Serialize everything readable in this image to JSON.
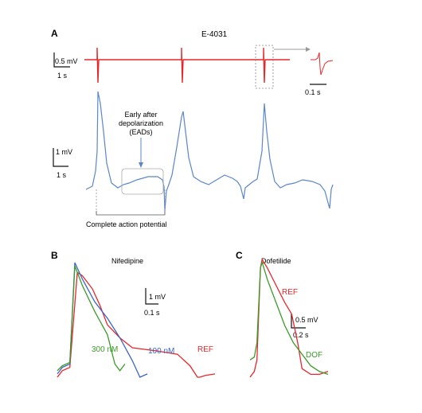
{
  "panel_a": {
    "label": "A",
    "title": "E-4031",
    "top_scale": {
      "amplitude": "0.5 mV",
      "time": "1 s"
    },
    "inset_scale": "0.1 s",
    "main_scale": {
      "amplitude": "1 mV",
      "time": "1 s"
    },
    "ead_annotation": [
      "Early after",
      "depolarization",
      "(EADs)"
    ],
    "cap_label": "Complete action potential"
  },
  "panel_b": {
    "label": "B",
    "title": "Nifedipine",
    "scale": {
      "amplitude": "1 mV",
      "time": "0.1 s"
    }
  },
  "panel_c": {
    "label": "C",
    "title": "Dofetilide",
    "scale": {
      "amplitude": "0.5 mV",
      "time": "0.2 s"
    }
  },
  "colors": {
    "ref": "#e8262a",
    "blue": "#3a66c4",
    "green": "#3a9a28",
    "ap_blue": "#5b86c8",
    "axis": "#111111",
    "guide": "#999999"
  },
  "chart_data": [
    {
      "type": "line",
      "title": "E-4031",
      "series": [
        {
          "color": "#e8262a",
          "x": [
            0,
            0.05,
            1.8,
            1.85,
            2.0,
            4.0,
            4.05,
            4.2,
            6.0,
            6.05,
            6.2,
            8.0
          ],
          "y": [
            0,
            0.0,
            0.0,
            -0.4,
            0.0,
            0.0,
            -0.4,
            0.0,
            0.0,
            -0.4,
            0.0,
            0.0
          ]
        },
        {
          "color": "#5b86c8",
          "x": [
            0,
            0.3,
            0.5,
            0.6,
            0.8,
            1.0,
            1.4,
            1.9,
            2.2,
            2.5,
            2.6,
            2.7,
            3.0,
            3.4,
            4.0,
            4.2,
            4.3,
            4.4,
            4.6,
            5.0,
            5.5,
            5.8,
            6.0,
            6.2,
            6.5,
            7.0,
            7.3,
            7.5,
            7.6
          ],
          "y": [
            0,
            -0.1,
            0.3,
            3.4,
            2.0,
            0.2,
            -0.3,
            0.2,
            0.3,
            0.2,
            -0.5,
            -1.1,
            2.8,
            0.9,
            -0.2,
            -0.3,
            -0.1,
            -0.3,
            0.0,
            0.1,
            -0.3,
            -0.6,
            -0.2,
            2.9,
            0.3,
            -0.4,
            0.0,
            0.3,
            -0.8
          ]
        }
      ]
    },
    {
      "type": "line",
      "title": "Nifedipine",
      "series": [
        {
          "name": "REF",
          "color": "#e8262a",
          "x": [
            0,
            0.02,
            0.05,
            0.08,
            0.1,
            0.14,
            0.17,
            0.2,
            0.25,
            0.3,
            0.4,
            0.48,
            0.53,
            0.56,
            0.57,
            0.59,
            0.63
          ],
          "y": [
            0,
            0.2,
            0.3,
            3.2,
            3.1,
            2.7,
            2.2,
            1.6,
            1.2,
            0.9,
            0.8,
            0.7,
            0.35,
            0.0,
            0.0,
            0.05,
            0.1
          ]
        },
        {
          "name": "100 nM",
          "color": "#3a66c4",
          "x": [
            0,
            0.02,
            0.05,
            0.07,
            0.1,
            0.15,
            0.2,
            0.25,
            0.3,
            0.33,
            0.36
          ],
          "y": [
            0.1,
            0.3,
            0.4,
            3.5,
            3.0,
            2.3,
            1.8,
            1.2,
            0.5,
            0.0,
            0.1
          ]
        },
        {
          "name": "300 nM",
          "color": "#3a9a28",
          "x": [
            0,
            0.02,
            0.05,
            0.07,
            0.1,
            0.15,
            0.2,
            0.23,
            0.25,
            0.27
          ],
          "y": [
            0.2,
            0.35,
            0.45,
            3.4,
            2.8,
            2.0,
            1.3,
            0.4,
            0.2,
            0.4
          ]
        }
      ]
    },
    {
      "type": "line",
      "title": "Dofetilide",
      "series": [
        {
          "name": "REF",
          "color": "#e8262a",
          "x": [
            0,
            0.05,
            0.08,
            0.12,
            0.14,
            0.2,
            0.3,
            0.4,
            0.48,
            0.55,
            0.6,
            0.7,
            0.8,
            0.9
          ],
          "y": [
            0,
            0.1,
            0.3,
            1.9,
            2.05,
            1.9,
            1.6,
            1.3,
            1.1,
            0.6,
            0.15,
            0.05,
            0.05,
            0.1
          ]
        },
        {
          "name": "DOF",
          "color": "#3a9a28",
          "x": [
            0,
            0.05,
            0.08,
            0.12,
            0.14,
            0.2,
            0.3,
            0.4,
            0.5,
            0.6,
            0.7,
            0.8,
            0.9
          ],
          "y": [
            0.3,
            0.35,
            0.6,
            1.9,
            2.0,
            1.7,
            1.3,
            0.9,
            0.6,
            0.4,
            0.2,
            0.1,
            0.05
          ]
        }
      ]
    }
  ]
}
